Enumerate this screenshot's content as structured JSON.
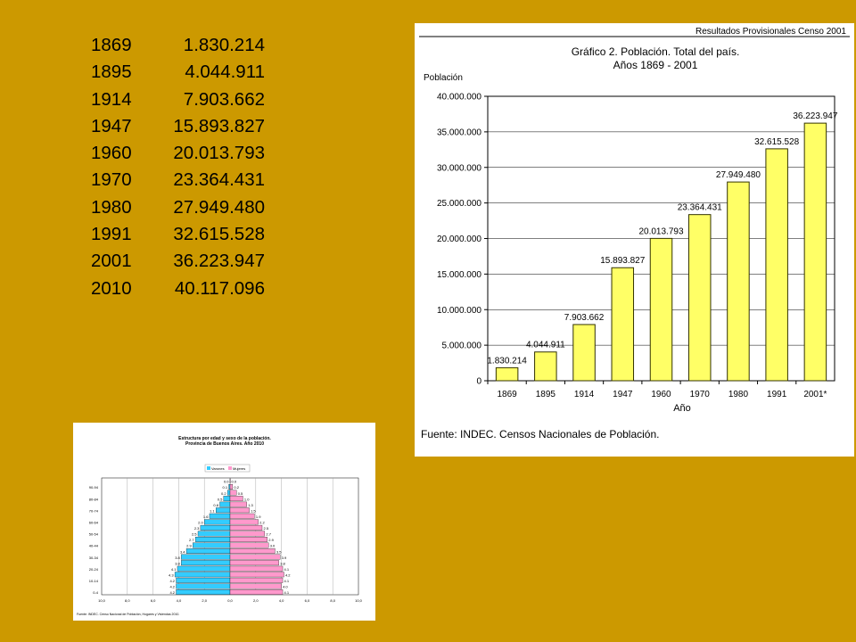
{
  "colors": {
    "background": "#CC9900",
    "bar_fill": "#FFFF66",
    "bar_stroke": "#333300",
    "male": "#33CCFF",
    "female": "#FF99CC"
  },
  "population_table": [
    {
      "year": "1869",
      "value": "1.830.214"
    },
    {
      "year": "1895",
      "value": "4.044.911"
    },
    {
      "year": "1914",
      "value": "7.903.662"
    },
    {
      "year": "1947",
      "value": "15.893.827"
    },
    {
      "year": "1960",
      "value": "20.013.793"
    },
    {
      "year": "1970",
      "value": "23.364.431"
    },
    {
      "year": "1980",
      "value": "27.949.480"
    },
    {
      "year": "1991",
      "value": "32.615.528"
    },
    {
      "year": "2001",
      "value": "36.223.947"
    },
    {
      "year": "2010",
      "value": "40.117.096"
    }
  ],
  "chart_data": [
    {
      "type": "bar",
      "header": "Resultados Provisionales Censo 2001",
      "title": "Gráfico 2. Población. Total del país.",
      "subtitle": "Años 1869 - 2001",
      "xlabel": "Año",
      "ylabel": "Población",
      "source": "Fuente: INDEC. Censos Nacionales de Población.",
      "categories": [
        "1869",
        "1895",
        "1914",
        "1947",
        "1960",
        "1970",
        "1980",
        "1991",
        "2001*"
      ],
      "values": [
        1830214,
        4044911,
        7903662,
        15893827,
        20013793,
        23364431,
        27949480,
        32615528,
        36223947
      ],
      "value_labels": [
        "1.830.214",
        "4.044.911",
        "7.903.662",
        "15.893.827",
        "20.013.793",
        "23.364.431",
        "27.949.480",
        "32.615.528",
        "36.223.947"
      ],
      "ylim": [
        0,
        40000000
      ],
      "yticks": [
        0,
        5000000,
        10000000,
        15000000,
        20000000,
        25000000,
        30000000,
        35000000,
        40000000
      ],
      "ytick_labels": [
        "0",
        "5.000.000",
        "10.000.000",
        "15.000.000",
        "20.000.000",
        "25.000.000",
        "30.000.000",
        "35.000.000",
        "40.000.000"
      ],
      "grid": true
    },
    {
      "type": "bar",
      "orientation": "horizontal-pyramid",
      "title": "Estructura por edad y sexo de la población.",
      "subtitle": "Provincia de Buenos Aires. Año 2010",
      "legend": [
        "Varones",
        "Mujeres"
      ],
      "categories": [
        "0-4",
        "5-9",
        "10-14",
        "15-19",
        "20-24",
        "25-29",
        "30-34",
        "35-39",
        "40-44",
        "45-49",
        "50-54",
        "55-59",
        "60-64",
        "65-69",
        "70-74",
        "75-79",
        "80-84",
        "85-89",
        "90-94",
        "95-99"
      ],
      "category_labels": [
        "0-4",
        "",
        "10-14",
        "",
        "20-24",
        "",
        "30-34",
        "",
        "40-44",
        "",
        "50-54",
        "",
        "60-64",
        "",
        "70-74",
        "",
        "80-84",
        "",
        "90-94",
        ""
      ],
      "series": [
        {
          "name": "Varones",
          "values": [
            4.2,
            4.2,
            4.2,
            4.3,
            4.1,
            3.8,
            3.8,
            3.4,
            2.9,
            2.7,
            2.5,
            2.3,
            2.0,
            1.6,
            1.1,
            0.8,
            0.5,
            0.2,
            0.1,
            0.0
          ]
        },
        {
          "name": "Mujeres",
          "values": [
            4.1,
            4.0,
            4.1,
            4.2,
            4.1,
            3.8,
            3.9,
            3.5,
            3.0,
            2.9,
            2.7,
            2.5,
            2.2,
            1.9,
            1.5,
            1.3,
            1.0,
            0.5,
            0.2,
            0.0
          ]
        }
      ],
      "xticks": [
        "10,0",
        "8,0",
        "6,0",
        "4,0",
        "2,0",
        "0,0",
        "2,0",
        "4,0",
        "6,0",
        "8,0",
        "10,0"
      ],
      "xlim": [
        -10,
        10
      ],
      "source": "Fuente: INDEC. Censo Nacional de Población, Hogares y Viviendas 2010."
    }
  ]
}
